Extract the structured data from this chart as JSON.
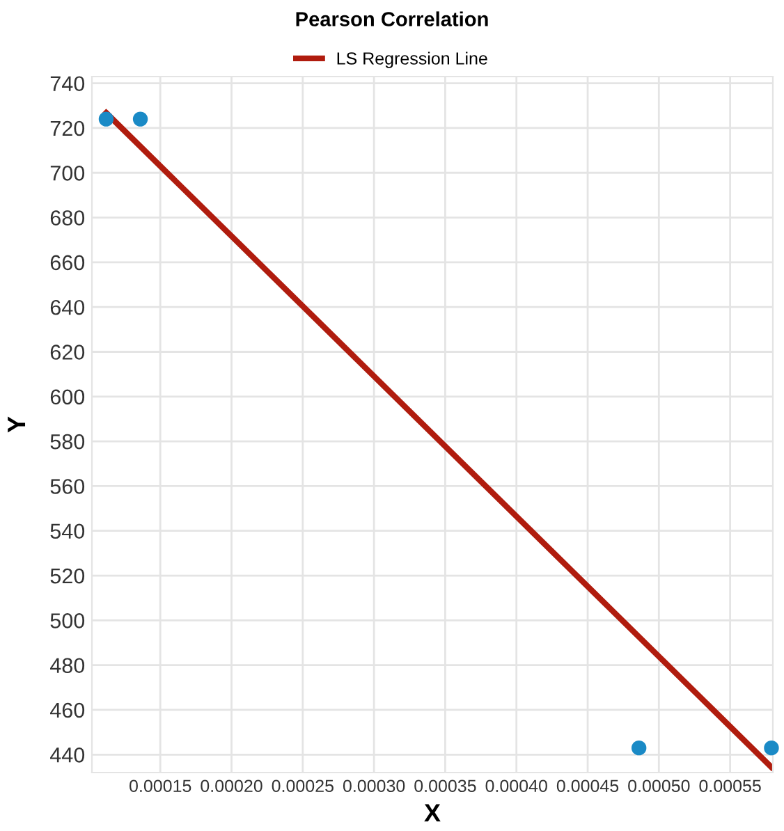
{
  "chart_data": {
    "type": "scatter",
    "title": "Pearson Correlation",
    "xlabel": "X",
    "ylabel": "Y",
    "series": [
      {
        "color": "#1a8ac6",
        "x": [
          0.000112,
          0.000136,
          0.000486,
          0.000579
        ],
        "values": [
          724,
          724,
          443,
          443
        ],
        "marker": "circle"
      },
      {
        "type": "line",
        "name": "LS Regression Line",
        "color": "#b01c0e",
        "x": [
          0.000112,
          0.000579
        ],
        "values": [
          726.8,
          434.4
        ],
        "line_style": "solid"
      }
    ],
    "xlim": [
      0.000102,
      0.00058
    ],
    "ylim": [
      432,
      743
    ],
    "xticks": [
      {
        "value": 0.00015,
        "label": "0.00015"
      },
      {
        "value": 0.0002,
        "label": "0.00020"
      },
      {
        "value": 0.00025,
        "label": "0.00025"
      },
      {
        "value": 0.0003,
        "label": "0.00030"
      },
      {
        "value": 0.00035,
        "label": "0.00035"
      },
      {
        "value": 0.0004,
        "label": "0.00040"
      },
      {
        "value": 0.00045,
        "label": "0.00045"
      },
      {
        "value": 0.0005,
        "label": "0.00050"
      },
      {
        "value": 0.00055,
        "label": "0.00055"
      }
    ],
    "yticks": [
      440,
      460,
      480,
      500,
      520,
      540,
      560,
      580,
      600,
      620,
      640,
      660,
      680,
      700,
      720,
      740
    ],
    "grid": true,
    "legend": "top"
  }
}
